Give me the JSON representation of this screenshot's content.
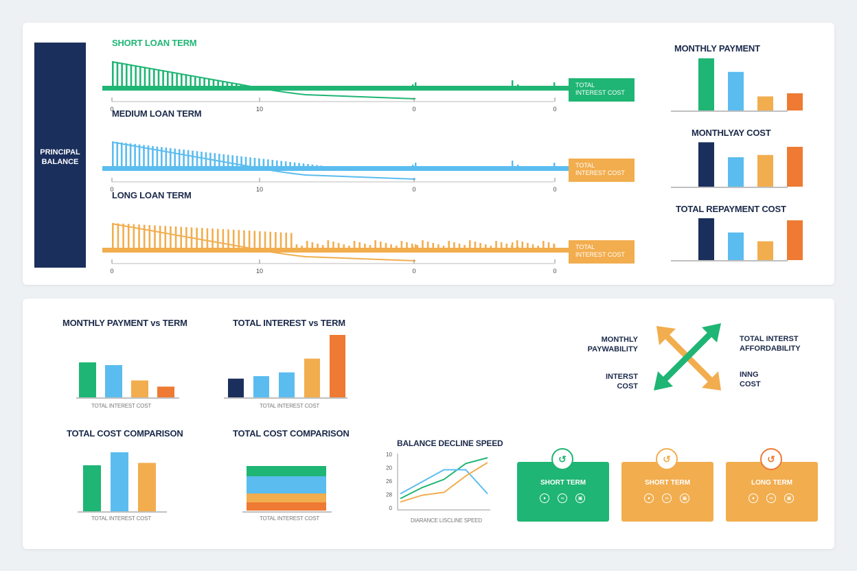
{
  "colors": {
    "navy": "#1b2f5c",
    "green": "#1fb574",
    "blue": "#5bbcef",
    "orange": "#f2ad4e",
    "red": "#ee7a33"
  },
  "principal_label": [
    "PRINCIPAL",
    "BALANCE"
  ],
  "terms": [
    {
      "title": "SHORT LOAN TERM",
      "color": "#1fb574",
      "tag_color": "#1fb574",
      "tag": [
        "TOTAL",
        "INTEREST COST"
      ],
      "ticks": [
        "0",
        "10",
        "0",
        "0"
      ]
    },
    {
      "title": "MEDIUM LOAN TERM",
      "color": "#5bbcef",
      "tag_color": "#f2ad4e",
      "tag": [
        "TOTAL",
        "INTEREST COST"
      ],
      "ticks": [
        "0",
        "10",
        "0",
        "0"
      ]
    },
    {
      "title": "LONG LOAN TERM",
      "color": "#f2ad4e",
      "tag_color": "#f2ad4e",
      "tag": [
        "TOTAL",
        "INTEREST COST"
      ],
      "ticks": [
        "0",
        "10",
        "0",
        "0"
      ]
    }
  ],
  "right_charts": [
    {
      "title": "MONTHLY PAYMENT",
      "values": [
        1.0,
        0.74,
        0.27,
        0.33
      ],
      "colors": [
        "#1fb574",
        "#5bbcef",
        "#f2ad4e",
        "#ee7a33"
      ]
    },
    {
      "title": "MONTHLYAY COST",
      "values": [
        0.98,
        0.65,
        0.7,
        0.88
      ],
      "colors": [
        "#1b2f5c",
        "#5bbcef",
        "#f2ad4e",
        "#ee7a33"
      ]
    },
    {
      "title": "TOTAL REPAYMENT COST",
      "values": [
        1.0,
        0.66,
        0.45,
        0.95
      ],
      "colors": [
        "#1b2f5c",
        "#5bbcef",
        "#f2ad4e",
        "#ee7a33"
      ]
    }
  ],
  "bottom": {
    "monthly_vs_term": {
      "title": "MONTHLY PAYMENT vs TERM",
      "caption": "TOTAL INTEREST COST",
      "values": [
        0.91,
        0.84,
        0.44,
        0.28
      ],
      "colors": [
        "#1fb574",
        "#5bbcef",
        "#f2ad4e",
        "#ee7a33"
      ]
    },
    "interest_vs_term": {
      "title": "TOTAL INTEREST vs TERM",
      "caption": "TOTAL INTEREST COST",
      "values": [
        0.3,
        0.34,
        0.4,
        0.62,
        1.0
      ],
      "colors": [
        "#1b2f5c",
        "#5bbcef",
        "#5bbcef",
        "#f2ad4e",
        "#ee7a33"
      ]
    },
    "cost_comparison_1": {
      "title": "TOTAL COST COMPARISON",
      "caption": "TOTAL INTEREST COST",
      "values": [
        0.78,
        1.0,
        0.82
      ],
      "colors": [
        "#1fb574",
        "#5bbcef",
        "#f2ad4e"
      ]
    },
    "cost_comparison_2": {
      "title": "TOTAL COST COMPARISON",
      "caption": "TOTAL INTEREST COST",
      "layers": [
        "#1fb574",
        "#5bbcef",
        "#f2ad4e",
        "#ee7a33"
      ]
    },
    "balance_decline": {
      "title": "BALANCE DECLINE SPEED",
      "caption": "DIARANCE LISCLINE SPEED",
      "y_ticks": [
        "10",
        "20",
        "26",
        "28",
        "0"
      ],
      "series": [
        {
          "color": "#1fb574",
          "values": [
            0.15,
            0.38,
            0.55,
            0.88,
            1.0
          ]
        },
        {
          "color": "#5bbcef",
          "values": [
            0.25,
            0.5,
            0.75,
            0.75,
            0.25
          ]
        },
        {
          "color": "#f2ad4e",
          "values": [
            0.08,
            0.22,
            0.28,
            0.62,
            0.9
          ]
        }
      ]
    }
  },
  "tradeoff": {
    "top_left": [
      "MONTHLY",
      "PAYWABILITY"
    ],
    "top_right": [
      "TOTAL INTERST",
      "AFFORDABILITY"
    ],
    "bottom_left": [
      "INTERST",
      "COST"
    ],
    "bottom_right": [
      "INNG",
      "COST"
    ]
  },
  "cards": [
    {
      "title": "SHORT TERM",
      "color": "#1fb574",
      "ring": "#1fb574"
    },
    {
      "title": "SHORT TERM",
      "color": "#f2ad4e",
      "ring": "#f2ad4e"
    },
    {
      "title": "LONG TERM",
      "color": "#f2ad4e",
      "ring": "#ee7a33"
    }
  ]
}
